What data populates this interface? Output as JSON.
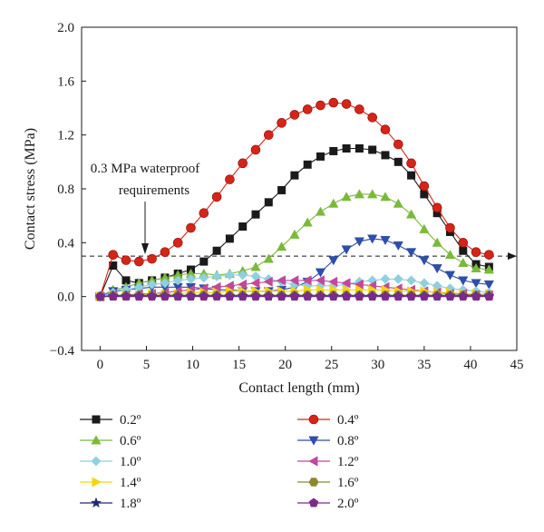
{
  "chart_data": {
    "type": "line",
    "title": "",
    "xlabel": "Contact length (mm)",
    "ylabel": "Contact stress (MPa)",
    "xlim": [
      -2,
      45
    ],
    "ylim": [
      -0.4,
      2.0
    ],
    "xticks": [
      0,
      5,
      10,
      15,
      20,
      25,
      30,
      35,
      40,
      45
    ],
    "yticks": [
      -0.4,
      0.0,
      0.4,
      0.8,
      1.2,
      1.6,
      2.0
    ],
    "ytick_labels": [
      "−0.4",
      "0.0",
      "0.4",
      "0.8",
      "1.2",
      "1.6",
      "2.0"
    ],
    "grid": false,
    "legend_position": "bottom",
    "annotation": {
      "lines": [
        "0.3 MPa waterproof",
        "requirements"
      ],
      "threshold_value": 0.3
    },
    "series": [
      {
        "name": "0.2º",
        "marker": "square",
        "color": "#1a1a1a",
        "x": [
          0,
          1.4,
          2.8,
          4.2,
          5.6,
          7.0,
          8.4,
          9.8,
          11.2,
          12.6,
          14.0,
          15.4,
          16.8,
          18.2,
          19.6,
          21.0,
          22.4,
          23.8,
          25.2,
          26.6,
          28.0,
          29.4,
          30.8,
          32.2,
          33.6,
          35.0,
          36.4,
          37.8,
          39.2,
          40.6,
          42.0
        ],
        "y": [
          0,
          0.23,
          0.12,
          0.1,
          0.12,
          0.14,
          0.17,
          0.2,
          0.26,
          0.34,
          0.43,
          0.52,
          0.61,
          0.7,
          0.79,
          0.9,
          0.98,
          1.04,
          1.08,
          1.1,
          1.1,
          1.09,
          1.05,
          1.0,
          0.9,
          0.76,
          0.62,
          0.48,
          0.34,
          0.24,
          0.22
        ]
      },
      {
        "name": "0.4º",
        "marker": "circle",
        "color": "#d62418",
        "x": [
          0,
          1.4,
          2.8,
          4.2,
          5.6,
          7.0,
          8.4,
          9.8,
          11.2,
          12.6,
          14.0,
          15.4,
          16.8,
          18.2,
          19.6,
          21.0,
          22.4,
          23.8,
          25.2,
          26.6,
          28.0,
          29.4,
          30.8,
          32.2,
          33.6,
          35.0,
          36.4,
          37.8,
          39.2,
          40.6,
          42.0
        ],
        "y": [
          0,
          0.31,
          0.27,
          0.26,
          0.28,
          0.33,
          0.4,
          0.51,
          0.62,
          0.74,
          0.87,
          0.99,
          1.09,
          1.2,
          1.29,
          1.35,
          1.39,
          1.42,
          1.44,
          1.43,
          1.39,
          1.33,
          1.24,
          1.13,
          0.99,
          0.82,
          0.66,
          0.51,
          0.4,
          0.33,
          0.31
        ]
      },
      {
        "name": "0.6º",
        "marker": "triangle-up",
        "color": "#7bb93a",
        "x": [
          0,
          1.4,
          2.8,
          4.2,
          5.6,
          7.0,
          8.4,
          9.8,
          11.2,
          12.6,
          14.0,
          15.4,
          16.8,
          18.2,
          19.6,
          21.0,
          22.4,
          23.8,
          25.2,
          26.6,
          28.0,
          29.4,
          30.8,
          32.2,
          33.6,
          35.0,
          36.4,
          37.8,
          39.2,
          40.6,
          42.0
        ],
        "y": [
          0,
          0.05,
          0.07,
          0.1,
          0.12,
          0.14,
          0.16,
          0.17,
          0.17,
          0.16,
          0.17,
          0.19,
          0.22,
          0.28,
          0.37,
          0.46,
          0.55,
          0.63,
          0.69,
          0.74,
          0.76,
          0.76,
          0.74,
          0.69,
          0.61,
          0.5,
          0.4,
          0.31,
          0.25,
          0.21,
          0.2
        ]
      },
      {
        "name": "0.8º",
        "marker": "triangle-down",
        "color": "#2e4ea8",
        "x": [
          0,
          1.4,
          2.8,
          4.2,
          5.6,
          7.0,
          8.4,
          9.8,
          11.2,
          12.6,
          14.0,
          15.4,
          16.8,
          18.2,
          19.6,
          21.0,
          22.4,
          23.8,
          25.2,
          26.6,
          28.0,
          29.4,
          30.8,
          32.2,
          33.6,
          35.0,
          36.4,
          37.8,
          39.2,
          40.6,
          42.0
        ],
        "y": [
          0,
          0.04,
          0.05,
          0.06,
          0.07,
          0.07,
          0.07,
          0.07,
          0.06,
          0.05,
          0.05,
          0.04,
          0.04,
          0.04,
          0.05,
          0.07,
          0.11,
          0.18,
          0.27,
          0.35,
          0.41,
          0.43,
          0.42,
          0.38,
          0.33,
          0.27,
          0.21,
          0.16,
          0.12,
          0.1,
          0.09
        ]
      },
      {
        "name": "1.0º",
        "marker": "diamond",
        "color": "#8fcfe0",
        "x": [
          0,
          1.4,
          2.8,
          4.2,
          5.6,
          7.0,
          8.4,
          9.8,
          11.2,
          12.6,
          14.0,
          15.4,
          16.8,
          18.2,
          19.6,
          21.0,
          22.4,
          23.8,
          25.2,
          26.6,
          28.0,
          29.4,
          30.8,
          32.2,
          33.6,
          35.0,
          36.4,
          37.8,
          39.2,
          40.6,
          42.0
        ],
        "y": [
          0,
          0.03,
          0.05,
          0.07,
          0.09,
          0.1,
          0.12,
          0.13,
          0.14,
          0.15,
          0.16,
          0.16,
          0.15,
          0.13,
          0.11,
          0.09,
          0.08,
          0.08,
          0.08,
          0.09,
          0.11,
          0.12,
          0.13,
          0.13,
          0.12,
          0.1,
          0.08,
          0.06,
          0.05,
          0.04,
          0.03
        ]
      },
      {
        "name": "1.2º",
        "marker": "triangle-left",
        "color": "#c2489a",
        "x": [
          0,
          1.4,
          2.8,
          4.2,
          5.6,
          7.0,
          8.4,
          9.8,
          11.2,
          12.6,
          14.0,
          15.4,
          16.8,
          18.2,
          19.6,
          21.0,
          22.4,
          23.8,
          25.2,
          26.6,
          28.0,
          29.4,
          30.8,
          32.2,
          33.6,
          35.0,
          36.4,
          37.8,
          39.2,
          40.6,
          42.0
        ],
        "y": [
          0,
          0.01,
          0.01,
          0.02,
          0.02,
          0.03,
          0.04,
          0.05,
          0.06,
          0.07,
          0.08,
          0.09,
          0.1,
          0.11,
          0.12,
          0.12,
          0.12,
          0.12,
          0.11,
          0.1,
          0.09,
          0.08,
          0.07,
          0.06,
          0.05,
          0.04,
          0.03,
          0.02,
          0.02,
          0.01,
          0.01
        ]
      },
      {
        "name": "1.4º",
        "marker": "triangle-right",
        "color": "#f5d410",
        "x": [
          0,
          1.4,
          2.8,
          4.2,
          5.6,
          7.0,
          8.4,
          9.8,
          11.2,
          12.6,
          14.0,
          15.4,
          16.8,
          18.2,
          19.6,
          21.0,
          22.4,
          23.8,
          25.2,
          26.6,
          28.0,
          29.4,
          30.8,
          32.2,
          33.6,
          35.0,
          36.4,
          37.8,
          39.2,
          40.6,
          42.0
        ],
        "y": [
          0,
          0.01,
          0.01,
          0.01,
          0.02,
          0.02,
          0.02,
          0.03,
          0.03,
          0.03,
          0.04,
          0.04,
          0.04,
          0.04,
          0.04,
          0.04,
          0.05,
          0.05,
          0.05,
          0.05,
          0.05,
          0.05,
          0.05,
          0.04,
          0.04,
          0.04,
          0.03,
          0.03,
          0.02,
          0.02,
          0.02
        ]
      },
      {
        "name": "1.6º",
        "marker": "hexagon",
        "color": "#8a8a2e",
        "x": [
          0,
          1.4,
          2.8,
          4.2,
          5.6,
          7.0,
          8.4,
          9.8,
          11.2,
          12.6,
          14.0,
          15.4,
          16.8,
          18.2,
          19.6,
          21.0,
          22.4,
          23.8,
          25.2,
          26.6,
          28.0,
          29.4,
          30.8,
          32.2,
          33.6,
          35.0,
          36.4,
          37.8,
          39.2,
          40.6,
          42.0
        ],
        "y": [
          0,
          0.01,
          0.01,
          0.01,
          0.01,
          0.01,
          0.01,
          0.01,
          0.01,
          0.01,
          0.01,
          0.01,
          0.01,
          0.01,
          0.01,
          0.01,
          0.01,
          0.01,
          0.01,
          0.01,
          0.01,
          0.01,
          0.01,
          0.01,
          0.01,
          0.01,
          0.01,
          0.01,
          0.01,
          0.01,
          0.01
        ]
      },
      {
        "name": "1.8º",
        "marker": "star",
        "color": "#1f2a6b",
        "x": [
          0,
          1.4,
          2.8,
          4.2,
          5.6,
          7.0,
          8.4,
          9.8,
          11.2,
          12.6,
          14.0,
          15.4,
          16.8,
          18.2,
          19.6,
          21.0,
          22.4,
          23.8,
          25.2,
          26.6,
          28.0,
          29.4,
          30.8,
          32.2,
          33.6,
          35.0,
          36.4,
          37.8,
          39.2,
          40.6,
          42.0
        ],
        "y": [
          0,
          0.005,
          0.005,
          0.005,
          0.005,
          0.005,
          0.005,
          0.005,
          0.005,
          0.005,
          0.005,
          0.005,
          0.005,
          0.005,
          0.005,
          0.005,
          0.005,
          0.005,
          0.005,
          0.005,
          0.005,
          0.005,
          0.005,
          0.005,
          0.005,
          0.005,
          0.005,
          0.005,
          0.005,
          0.005,
          0.005
        ]
      },
      {
        "name": "2.0º",
        "marker": "pentagon",
        "color": "#7a2a8a",
        "x": [
          0,
          1.4,
          2.8,
          4.2,
          5.6,
          7.0,
          8.4,
          9.8,
          11.2,
          12.6,
          14.0,
          15.4,
          16.8,
          18.2,
          19.6,
          21.0,
          22.4,
          23.8,
          25.2,
          26.6,
          28.0,
          29.4,
          30.8,
          32.2,
          33.6,
          35.0,
          36.4,
          37.8,
          39.2,
          40.6,
          42.0
        ],
        "y": [
          0,
          0,
          0,
          0,
          0,
          0,
          0,
          0,
          0,
          0,
          0,
          0,
          0,
          0,
          0,
          0,
          0,
          0,
          0,
          0,
          0,
          0,
          0,
          0,
          0,
          0,
          0,
          0,
          0,
          0,
          0
        ]
      }
    ]
  }
}
